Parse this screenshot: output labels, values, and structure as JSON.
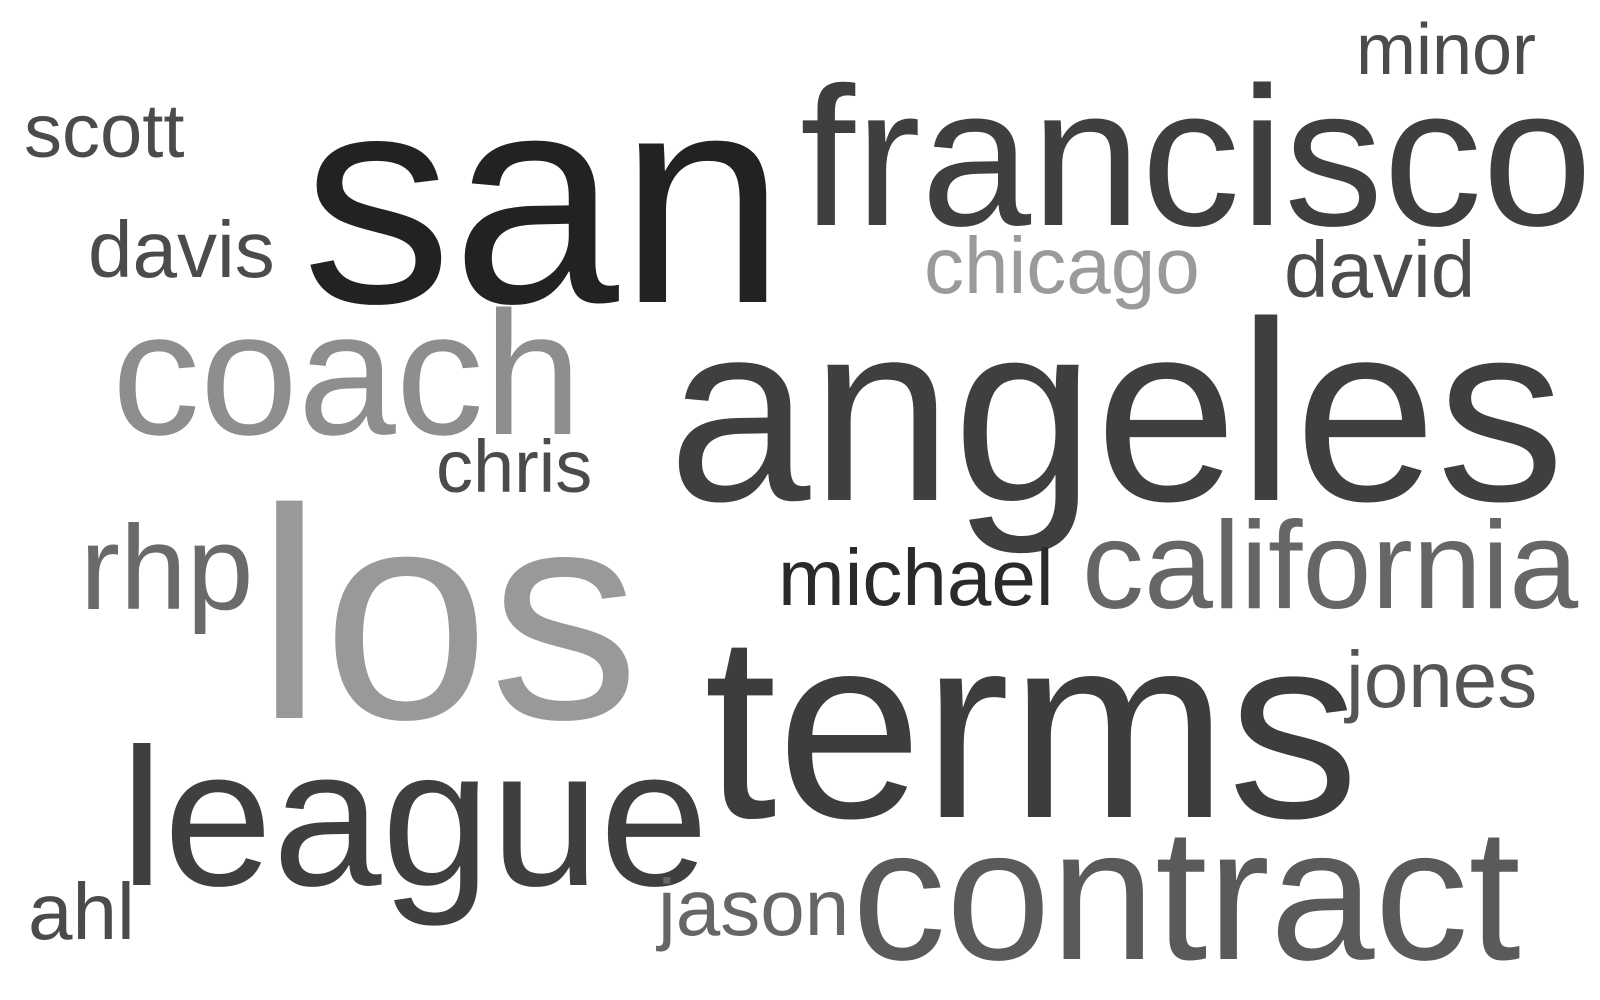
{
  "words": {
    "san": {
      "text": "san",
      "color": "#222222"
    },
    "francisco": {
      "text": "francisco",
      "color": "#3f3f3f"
    },
    "minor": {
      "text": "minor",
      "color": "#4b4b4b"
    },
    "scott": {
      "text": "scott",
      "color": "#4b4b4b"
    },
    "davis": {
      "text": "davis",
      "color": "#4b4b4b"
    },
    "chicago": {
      "text": "chicago",
      "color": "#9a9a9a"
    },
    "david": {
      "text": "david",
      "color": "#4b4b4b"
    },
    "coach": {
      "text": "coach",
      "color": "#8e8e8e"
    },
    "angeles": {
      "text": "angeles",
      "color": "#3f3f3f"
    },
    "chris": {
      "text": "chris",
      "color": "#4b4b4b"
    },
    "rhp": {
      "text": "rhp",
      "color": "#6a6a6a"
    },
    "los": {
      "text": "los",
      "color": "#999999"
    },
    "michael": {
      "text": "michael",
      "color": "#2a2a2a"
    },
    "california": {
      "text": "california",
      "color": "#666666"
    },
    "terms": {
      "text": "terms",
      "color": "#3d3d3d"
    },
    "jones": {
      "text": "jones",
      "color": "#555555"
    },
    "league": {
      "text": "league",
      "color": "#3f3f3f"
    },
    "contract": {
      "text": "contract",
      "color": "#5a5a5a"
    },
    "ahl": {
      "text": "ahl",
      "color": "#4b4b4b"
    },
    "jason": {
      "text": "jason",
      "color": "#666666"
    }
  }
}
